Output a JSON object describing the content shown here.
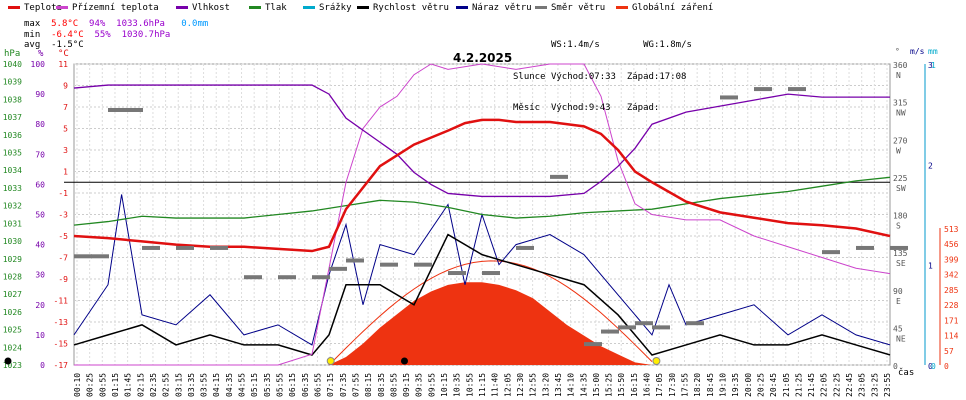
{
  "legend": [
    {
      "label": "Teplota",
      "color": "#e01010"
    },
    {
      "label": "Přízemní teplota",
      "color": "#cc44cc"
    },
    {
      "label": "Vlhkost",
      "color": "#7700aa"
    },
    {
      "label": "Tlak",
      "color": "#228822"
    },
    {
      "label": "Srážky",
      "color": "#00aacc"
    },
    {
      "label": "Rychlost větru",
      "color": "#000000"
    },
    {
      "label": "Náraz větru",
      "color": "#000088"
    },
    {
      "label": "Směr větru",
      "color": "#777777"
    },
    {
      "label": "Globální záření",
      "color": "#ee3311"
    }
  ],
  "stats": {
    "max_label": "max",
    "max_temp": "5.8°C",
    "max_hum": "94%",
    "max_press": "1033.6hPa",
    "max_rain": "0.0mm",
    "min_label": "min",
    "min_temp": "-6.4°C",
    "min_hum": "55%",
    "min_press": "1030.7hPa",
    "avg_label": "avg",
    "avg_temp": "-1.5°C"
  },
  "astro": {
    "ws": "WS:1.4m/s",
    "wg": "WG:1.8m/s",
    "sun_label": "Slunce",
    "sun_rise": "Východ:07:33",
    "sun_set": "Západ:17:08",
    "moon_label": "Měsíc",
    "moon_rise": "Východ:9:43",
    "moon_set": "Západ:"
  },
  "date": "4.2.2025",
  "axes": {
    "hpa_unit": "hPa",
    "pct_unit": "%",
    "c_unit": "°C",
    "deg_unit": "°",
    "ms_unit": "m/s",
    "mm_unit": "mm",
    "time_unit": "čas",
    "hpa_ticks": [
      "1040",
      "1039",
      "1038",
      "1037",
      "1036",
      "1035",
      "1034",
      "1033",
      "1032",
      "1031",
      "1030",
      "1029",
      "1028",
      "1027",
      "1026",
      "1025",
      "1024",
      "1023"
    ],
    "pct_ticks": [
      "100",
      "90",
      "80",
      "70",
      "60",
      "50",
      "40",
      "30",
      "20",
      "10",
      "0"
    ],
    "c_ticks": [
      "11",
      "9",
      "7",
      "5",
      "3",
      "1",
      "-1",
      "-3",
      "-5",
      "-7",
      "-9",
      "-11",
      "-13",
      "-15",
      "-17"
    ],
    "deg_ticks": [
      {
        "v": "360",
        "d": "N"
      },
      {
        "v": "315",
        "d": "NW"
      },
      {
        "v": "270",
        "d": "W"
      },
      {
        "v": "225",
        "d": "SW"
      },
      {
        "v": "180",
        "d": "S"
      },
      {
        "v": "135",
        "d": "SE"
      },
      {
        "v": "90",
        "d": "E"
      },
      {
        "v": "45",
        "d": "NE"
      },
      {
        "v": "0",
        "d": ""
      }
    ],
    "ms_ticks": [
      "3",
      "2",
      "1",
      "0"
    ],
    "mm_ticks": [
      "1",
      "0"
    ],
    "rad_ticks": [
      "513",
      "456",
      "399",
      "342",
      "285",
      "228",
      "171",
      "114",
      "57",
      "0"
    ]
  },
  "chart_data": {
    "type": "line",
    "x_ticks": [
      "00:10",
      "00:25",
      "00:55",
      "01:15",
      "01:45",
      "02:15",
      "02:35",
      "02:55",
      "03:15",
      "03:35",
      "03:55",
      "04:15",
      "04:35",
      "04:55",
      "05:15",
      "05:35",
      "05:55",
      "06:15",
      "06:35",
      "06:55",
      "07:15",
      "07:35",
      "07:55",
      "08:15",
      "08:35",
      "08:55",
      "09:15",
      "09:35",
      "09:55",
      "10:15",
      "10:35",
      "10:55",
      "11:15",
      "11:40",
      "12:05",
      "12:30",
      "12:55",
      "13:20",
      "13:45",
      "14:10",
      "14:35",
      "15:00",
      "15:25",
      "15:50",
      "16:15",
      "16:40",
      "17:05",
      "17:30",
      "17:55",
      "18:20",
      "18:45",
      "19:10",
      "19:35",
      "20:00",
      "20:25",
      "20:45",
      "21:05",
      "21:25",
      "21:45",
      "22:05",
      "22:25",
      "22:45",
      "23:05",
      "23:25",
      "23:55"
    ],
    "series": [
      {
        "name": "Teplota",
        "unit": "°C",
        "color": "#e01010",
        "x": [
          0,
          1,
          2,
          3,
          4,
          5,
          6,
          7,
          7.5,
          8,
          9,
          10,
          11,
          11.5,
          12,
          12.5,
          13,
          14,
          15,
          15.5,
          16,
          16.5,
          17,
          18,
          19,
          20,
          21,
          22,
          23,
          24
        ],
        "y": [
          -5,
          -5.2,
          -5.5,
          -5.8,
          -6,
          -6,
          -6.2,
          -6.4,
          -6,
          -2.5,
          1.5,
          3.5,
          4.8,
          5.5,
          5.8,
          5.8,
          5.6,
          5.6,
          5.2,
          4.5,
          3,
          1,
          0,
          -1.8,
          -2.8,
          -3.3,
          -3.8,
          -4,
          -4.3,
          -5
        ]
      },
      {
        "name": "Přízemní teplota",
        "unit": "°C",
        "color": "#cc44cc",
        "x": [
          0,
          1,
          2,
          3,
          4,
          5,
          6,
          7,
          7.5,
          8,
          8.5,
          9,
          9.5,
          10,
          10.5,
          11,
          12,
          13,
          14,
          15,
          15.5,
          16,
          16.5,
          17,
          18,
          19,
          20,
          21,
          22,
          23,
          24
        ],
        "y": [
          -17,
          -17,
          -17,
          -17,
          -17,
          -17,
          -17,
          -16,
          -8,
          0,
          5,
          7,
          8,
          10,
          11,
          10.5,
          11,
          10.5,
          11,
          11,
          8,
          2,
          -2,
          -3,
          -3.5,
          -3.5,
          -5,
          -6,
          -7,
          -8,
          -8.5
        ]
      },
      {
        "name": "Vlhkost",
        "unit": "%",
        "color": "#7700aa",
        "x": [
          0,
          1,
          2,
          3,
          4,
          5,
          6,
          7,
          7.5,
          8,
          8.5,
          9,
          9.5,
          10,
          10.5,
          11,
          12,
          13,
          14,
          15,
          15.5,
          16,
          16.5,
          17,
          18,
          19,
          20,
          21,
          22,
          23,
          24
        ],
        "y": [
          92,
          93,
          93,
          93,
          93,
          93,
          93,
          93,
          90,
          82,
          78,
          74,
          70,
          64,
          60,
          57,
          56,
          56,
          56,
          57,
          61,
          66,
          72,
          80,
          84,
          86,
          88,
          90,
          89,
          89,
          89
        ]
      },
      {
        "name": "Tlak",
        "unit": "hPa",
        "color": "#228822",
        "x": [
          0,
          1,
          2,
          3,
          4,
          5,
          6,
          7,
          8,
          9,
          10,
          11,
          12,
          13,
          14,
          15,
          16,
          17,
          18,
          19,
          20,
          21,
          22,
          23,
          24
        ],
        "y": [
          1030.9,
          1031.1,
          1031.4,
          1031.3,
          1031.3,
          1031.3,
          1031.5,
          1031.7,
          1032.0,
          1032.3,
          1032.2,
          1031.9,
          1031.5,
          1031.3,
          1031.4,
          1031.6,
          1031.7,
          1031.8,
          1032.1,
          1032.4,
          1032.6,
          1032.8,
          1033.1,
          1033.4,
          1033.6
        ]
      },
      {
        "name": "Rychlost větru",
        "unit": "m/s",
        "color": "#000000",
        "x": [
          0,
          1,
          2,
          3,
          4,
          5,
          6,
          7,
          7.5,
          8,
          9,
          10,
          11,
          12,
          13,
          14,
          15,
          16,
          17,
          18,
          19,
          20,
          21,
          22,
          23,
          24
        ],
        "y": [
          0.2,
          0.3,
          0.4,
          0.2,
          0.3,
          0.2,
          0.2,
          0.1,
          0.3,
          0.8,
          0.8,
          0.6,
          1.3,
          1.1,
          1.0,
          0.9,
          0.8,
          0.5,
          0.1,
          0.2,
          0.3,
          0.2,
          0.2,
          0.3,
          0.2,
          0.1
        ]
      },
      {
        "name": "Náraz větru",
        "unit": "m/s",
        "color": "#000088",
        "x": [
          0,
          1,
          1.4,
          2,
          3,
          4,
          5,
          6,
          7,
          7.5,
          8,
          8.5,
          9,
          10,
          11,
          11.5,
          12,
          12.5,
          13,
          14,
          15,
          16,
          17,
          17.5,
          18,
          19,
          20,
          21,
          22,
          23,
          24
        ],
        "y": [
          0.3,
          0.8,
          1.7,
          0.5,
          0.4,
          0.7,
          0.3,
          0.4,
          0.2,
          0.9,
          1.4,
          0.6,
          1.2,
          1.1,
          1.6,
          0.8,
          1.5,
          1.0,
          1.2,
          1.3,
          1.1,
          0.7,
          0.3,
          0.8,
          0.4,
          0.5,
          0.6,
          0.3,
          0.5,
          0.3,
          0.2
        ]
      },
      {
        "name": "Směr větru",
        "unit": "°",
        "color": "#777777",
        "x": [
          0,
          0.5,
          1,
          1.5,
          2,
          3,
          4,
          5,
          6,
          7,
          7.5,
          8,
          9,
          10,
          11,
          12,
          13,
          14,
          15,
          15.5,
          16,
          16.5,
          17,
          18,
          19,
          20,
          21,
          22,
          23,
          24
        ],
        "y": [
          130,
          130,
          305,
          305,
          140,
          140,
          140,
          105,
          105,
          105,
          115,
          125,
          120,
          120,
          110,
          110,
          140,
          225,
          25,
          40,
          45,
          50,
          45,
          50,
          320,
          330,
          330,
          135,
          140,
          140
        ]
      },
      {
        "name": "Globální záření",
        "unit": "W/m2",
        "color": "#ee3311",
        "x": [
          7.5,
          8,
          8.5,
          9,
          9.5,
          10,
          10.5,
          11,
          11.5,
          12,
          12.5,
          13,
          13.5,
          14,
          14.5,
          15,
          15.5,
          16,
          16.5,
          17
        ],
        "y": [
          0,
          30,
          80,
          140,
          190,
          240,
          275,
          300,
          310,
          310,
          300,
          280,
          250,
          200,
          150,
          110,
          70,
          40,
          10,
          0
        ]
      }
    ],
    "ylim_temp": [
      -17,
      11
    ],
    "ylim_hum": [
      0,
      100
    ],
    "ylim_press": [
      1023,
      1040
    ]
  }
}
